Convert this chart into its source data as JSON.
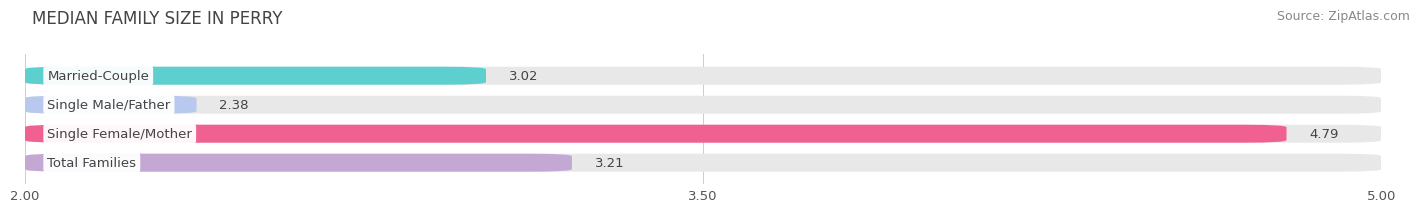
{
  "title": "MEDIAN FAMILY SIZE IN PERRY",
  "source": "Source: ZipAtlas.com",
  "categories": [
    "Married-Couple",
    "Single Male/Father",
    "Single Female/Mother",
    "Total Families"
  ],
  "values": [
    3.02,
    2.38,
    4.79,
    3.21
  ],
  "bar_colors": [
    "#5ecfcf",
    "#b8c8ee",
    "#f06090",
    "#c4a8d4"
  ],
  "xmin": 2.0,
  "xmax": 5.0,
  "xticks": [
    2.0,
    3.5,
    5.0
  ],
  "xtick_labels": [
    "2.00",
    "3.50",
    "5.00"
  ],
  "bar_height": 0.62,
  "background_color": "#ffffff",
  "bar_background_color": "#e8e8e8",
  "title_fontsize": 12,
  "label_fontsize": 9.5,
  "value_fontsize": 9.5,
  "source_fontsize": 9
}
